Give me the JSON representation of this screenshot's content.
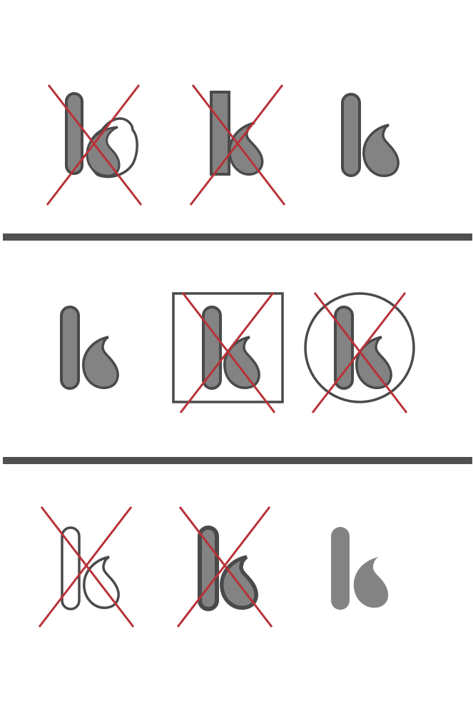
{
  "colors": {
    "background": "#ffffff",
    "fill": "#838383",
    "stroke": "#4a4a4a",
    "cross": "#b83237",
    "divider": "#505050"
  },
  "rows": [
    {
      "name": "row-1",
      "variants": [
        {
          "name": "logo-variant-overlapping-blob",
          "crossed": true
        },
        {
          "name": "logo-variant-square-bar",
          "crossed": true
        },
        {
          "name": "logo-variant-correct",
          "crossed": false
        }
      ]
    },
    {
      "name": "row-2",
      "variants": [
        {
          "name": "logo-variant-correct",
          "crossed": false
        },
        {
          "name": "logo-variant-in-square-frame",
          "crossed": true
        },
        {
          "name": "logo-variant-in-circle-frame",
          "crossed": true
        }
      ]
    },
    {
      "name": "row-3",
      "variants": [
        {
          "name": "logo-variant-outline-only",
          "crossed": true
        },
        {
          "name": "logo-variant-thick-stroke",
          "crossed": true
        },
        {
          "name": "logo-variant-flat-no-stroke",
          "crossed": false
        }
      ]
    }
  ]
}
